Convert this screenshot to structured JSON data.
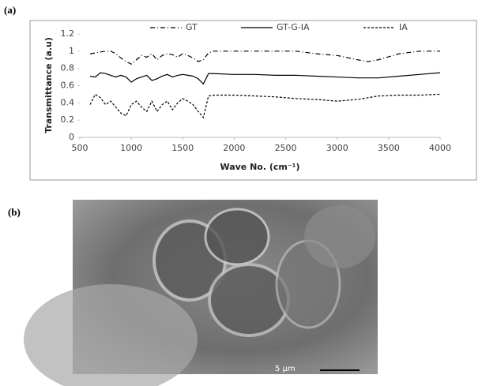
{
  "chart_data": {
    "type": "line",
    "y_label": "Transmittance (a.u)",
    "x_label": "Wave No. (cm⁻¹)",
    "x": [
      600,
      650,
      700,
      750,
      800,
      850,
      900,
      950,
      1000,
      1050,
      1100,
      1150,
      1200,
      1250,
      1300,
      1350,
      1400,
      1450,
      1500,
      1550,
      1600,
      1650,
      1700,
      1750,
      1800,
      2000,
      2200,
      2400,
      2600,
      2800,
      3000,
      3200,
      3300,
      3400,
      3600,
      3800,
      4000
    ],
    "series": [
      {
        "name": "GT",
        "color": "#000000",
        "style": "dash-dot",
        "values": [
          0.97,
          0.98,
          0.99,
          1.0,
          1.0,
          0.97,
          0.92,
          0.88,
          0.85,
          0.9,
          0.95,
          0.93,
          0.97,
          0.9,
          0.95,
          0.97,
          0.96,
          0.93,
          0.97,
          0.95,
          0.92,
          0.88,
          0.9,
          0.98,
          1.0,
          1.0,
          1.0,
          1.0,
          1.0,
          0.97,
          0.95,
          0.9,
          0.88,
          0.9,
          0.97,
          1.0,
          1.0
        ]
      },
      {
        "name": "GT-G-IA",
        "color": "#000000",
        "style": "solid",
        "values": [
          0.71,
          0.7,
          0.75,
          0.74,
          0.72,
          0.7,
          0.72,
          0.7,
          0.64,
          0.68,
          0.7,
          0.72,
          0.66,
          0.68,
          0.71,
          0.73,
          0.7,
          0.72,
          0.73,
          0.72,
          0.71,
          0.68,
          0.62,
          0.74,
          0.74,
          0.73,
          0.73,
          0.72,
          0.72,
          0.71,
          0.7,
          0.69,
          0.69,
          0.69,
          0.71,
          0.73,
          0.75
        ]
      },
      {
        "name": "IA",
        "color": "#000000",
        "style": "dashed",
        "values": [
          0.38,
          0.5,
          0.46,
          0.38,
          0.42,
          0.35,
          0.28,
          0.25,
          0.38,
          0.42,
          0.35,
          0.3,
          0.42,
          0.3,
          0.38,
          0.42,
          0.32,
          0.4,
          0.45,
          0.42,
          0.38,
          0.3,
          0.23,
          0.48,
          0.49,
          0.49,
          0.48,
          0.47,
          0.45,
          0.44,
          0.42,
          0.44,
          0.46,
          0.48,
          0.49,
          0.49,
          0.5
        ]
      }
    ],
    "xlim": [
      500,
      4000
    ],
    "xticks": [
      500,
      1000,
      1500,
      2000,
      2500,
      3000,
      3500,
      4000
    ],
    "ylim": [
      0,
      1.2
    ],
    "yticks": [
      0,
      0.2,
      0.4,
      0.6,
      0.8,
      1,
      1.2
    ],
    "grid": false,
    "legend": "top"
  },
  "figure": {
    "panel_a": "(a)",
    "panel_b": "(b)",
    "scale_bar": "5 µm"
  }
}
